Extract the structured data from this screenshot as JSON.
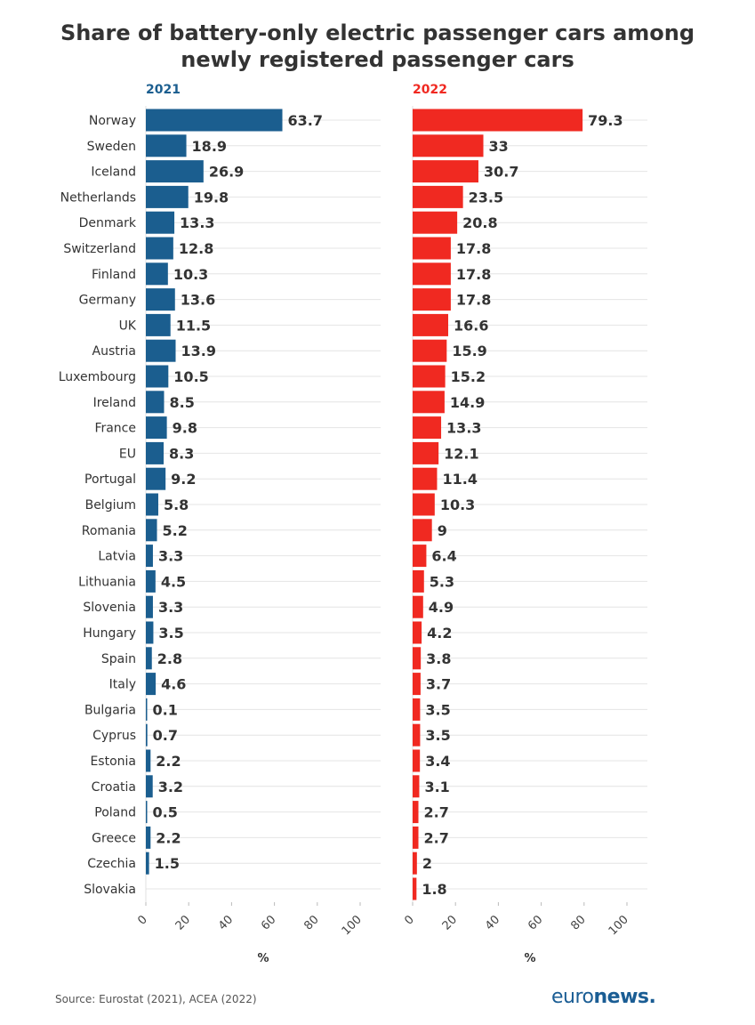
{
  "title_line1": "Share of battery-only electric passenger cars among",
  "title_line2": "newly registered passenger cars",
  "source": "Source: Eurostat (2021), ACEA (2022)",
  "logo": {
    "light": "euro",
    "bold": "news",
    "dot": "."
  },
  "colors": {
    "y2021": "#1b5e8f",
    "y2022": "#f02921",
    "grid": "#e4e4e4"
  },
  "chart_data": {
    "type": "bar",
    "orientation": "horizontal",
    "categories": [
      "Norway",
      "Sweden",
      "Iceland",
      "Netherlands",
      "Denmark",
      "Switzerland",
      "Finland",
      "Germany",
      "UK",
      "Austria",
      "Luxembourg",
      "Ireland",
      "France",
      "EU",
      "Portugal",
      "Belgium",
      "Romania",
      "Latvia",
      "Lithuania",
      "Slovenia",
      "Hungary",
      "Spain",
      "Italy",
      "Bulgaria",
      "Cyprus",
      "Estonia",
      "Croatia",
      "Poland",
      "Greece",
      "Czechia",
      "Slovakia"
    ],
    "series": [
      {
        "name": "2021",
        "values": [
          63.7,
          18.9,
          26.9,
          19.8,
          13.3,
          12.8,
          10.3,
          13.6,
          11.5,
          13.9,
          10.5,
          8.5,
          9.8,
          8.3,
          9.2,
          5.8,
          5.2,
          3.3,
          4.5,
          3.3,
          3.5,
          2.8,
          4.6,
          0.1,
          0.7,
          2.2,
          3.2,
          0.5,
          2.2,
          1.5,
          null
        ]
      },
      {
        "name": "2022",
        "values": [
          79.3,
          33,
          30.7,
          23.5,
          20.8,
          17.8,
          17.8,
          17.8,
          16.6,
          15.9,
          15.2,
          14.9,
          13.3,
          12.1,
          11.4,
          10.3,
          9,
          6.4,
          5.3,
          4.9,
          4.2,
          3.8,
          3.7,
          3.5,
          3.5,
          3.4,
          3.1,
          2.7,
          2.7,
          2,
          1.8
        ]
      }
    ],
    "value_labels_2021": [
      "63.7",
      "18.9",
      "26.9",
      "19.8",
      "13.3",
      "12.8",
      "10.3",
      "13.6",
      "11.5",
      "13.9",
      "10.5",
      "8.5",
      "9.8",
      "8.3",
      "9.2",
      "5.8",
      "5.2",
      "3.3",
      "4.5",
      "3.3",
      "3.5",
      "2.8",
      "4.6",
      "0.1",
      "0.7",
      "2.2",
      "3.2",
      "0.5",
      "2.2",
      "1.5",
      ""
    ],
    "value_labels_2022": [
      "79.3",
      "33",
      "30.7",
      "23.5",
      "20.8",
      "17.8",
      "17.8",
      "17.8",
      "16.6",
      "15.9",
      "15.2",
      "14.9",
      "13.3",
      "12.1",
      "11.4",
      "10.3",
      "9",
      "6.4",
      "5.3",
      "4.9",
      "4.2",
      "3.8",
      "3.7",
      "3.5",
      "3.5",
      "3.4",
      "3.1",
      "2.7",
      "2.7",
      "2",
      "1.8"
    ],
    "xlabel": "%",
    "xlim": [
      0,
      100
    ],
    "xticks": [
      0,
      20,
      40,
      60,
      80,
      100
    ],
    "grid": true
  }
}
